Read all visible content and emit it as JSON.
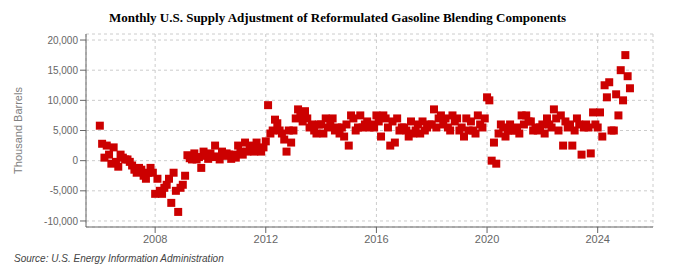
{
  "chart_data": {
    "type": "scatter",
    "title": "Monthly U.S. Supply Adjustment of Reformulated Gasoline Blending Components",
    "ylabel": "Thousand Barrels",
    "source": "Source: U.S. Energy Information Administration",
    "color": "#cc0000",
    "marker": "square",
    "grid": true,
    "xlim": [
      2005.5,
      2026.0
    ],
    "xticks": [
      2008,
      2012,
      2016,
      2020,
      2024
    ],
    "ylim": [
      -11000,
      21000
    ],
    "yticks": [
      {
        "value": -10000,
        "label": "-10,000"
      },
      {
        "value": -5000,
        "label": "-5,000"
      },
      0,
      {
        "value": 5000,
        "label": "5,000"
      },
      {
        "value": 10000,
        "label": "10,000"
      },
      {
        "value": 15000,
        "label": "15,000"
      },
      {
        "value": 20000,
        "label": "20,000"
      }
    ],
    "x": [
      2006.0,
      2006.083,
      2006.167,
      2006.25,
      2006.333,
      2006.417,
      2006.5,
      2006.583,
      2006.667,
      2006.75,
      2006.833,
      2006.917,
      2007.0,
      2007.083,
      2007.167,
      2007.25,
      2007.333,
      2007.417,
      2007.5,
      2007.583,
      2007.667,
      2007.75,
      2007.833,
      2007.917,
      2008.0,
      2008.083,
      2008.167,
      2008.25,
      2008.333,
      2008.417,
      2008.5,
      2008.583,
      2008.667,
      2008.75,
      2008.833,
      2008.917,
      2009.0,
      2009.083,
      2009.167,
      2009.25,
      2009.333,
      2009.417,
      2009.5,
      2009.583,
      2009.667,
      2009.75,
      2009.833,
      2009.917,
      2010.0,
      2010.083,
      2010.167,
      2010.25,
      2010.333,
      2010.417,
      2010.5,
      2010.583,
      2010.667,
      2010.75,
      2010.833,
      2010.917,
      2011.0,
      2011.083,
      2011.167,
      2011.25,
      2011.333,
      2011.417,
      2011.5,
      2011.583,
      2011.667,
      2011.75,
      2011.833,
      2011.917,
      2012.0,
      2012.083,
      2012.167,
      2012.25,
      2012.333,
      2012.417,
      2012.5,
      2012.583,
      2012.667,
      2012.75,
      2012.833,
      2012.917,
      2013.0,
      2013.083,
      2013.167,
      2013.25,
      2013.333,
      2013.417,
      2013.5,
      2013.583,
      2013.667,
      2013.75,
      2013.833,
      2013.917,
      2014.0,
      2014.083,
      2014.167,
      2014.25,
      2014.333,
      2014.417,
      2014.5,
      2014.583,
      2014.667,
      2014.75,
      2014.833,
      2014.917,
      2015.0,
      2015.083,
      2015.167,
      2015.25,
      2015.333,
      2015.417,
      2015.5,
      2015.583,
      2015.667,
      2015.75,
      2015.833,
      2015.917,
      2016.0,
      2016.083,
      2016.167,
      2016.25,
      2016.333,
      2016.417,
      2016.5,
      2016.583,
      2016.667,
      2016.75,
      2016.833,
      2016.917,
      2017.0,
      2017.083,
      2017.167,
      2017.25,
      2017.333,
      2017.417,
      2017.5,
      2017.583,
      2017.667,
      2017.75,
      2017.833,
      2017.917,
      2018.0,
      2018.083,
      2018.167,
      2018.25,
      2018.333,
      2018.417,
      2018.5,
      2018.583,
      2018.667,
      2018.75,
      2018.833,
      2018.917,
      2019.0,
      2019.083,
      2019.167,
      2019.25,
      2019.333,
      2019.417,
      2019.5,
      2019.583,
      2019.667,
      2019.75,
      2019.833,
      2019.917,
      2020.0,
      2020.083,
      2020.167,
      2020.25,
      2020.333,
      2020.417,
      2020.5,
      2020.583,
      2020.667,
      2020.75,
      2020.833,
      2020.917,
      2021.0,
      2021.083,
      2021.167,
      2021.25,
      2021.333,
      2021.417,
      2021.5,
      2021.583,
      2021.667,
      2021.75,
      2021.833,
      2021.917,
      2022.0,
      2022.083,
      2022.167,
      2022.25,
      2022.333,
      2022.417,
      2022.5,
      2022.583,
      2022.667,
      2022.75,
      2022.833,
      2022.917,
      2023.0,
      2023.083,
      2023.167,
      2023.25,
      2023.333,
      2023.417,
      2023.5,
      2023.583,
      2023.667,
      2023.75,
      2023.833,
      2023.917,
      2024.0,
      2024.083,
      2024.167,
      2024.25,
      2024.333,
      2024.417,
      2024.5,
      2024.583,
      2024.667,
      2024.75,
      2024.833,
      2024.917,
      2025.0,
      2025.083,
      2025.167
    ],
    "values": [
      5800,
      2800,
      500,
      2500,
      1000,
      -500,
      2200,
      -200,
      -1000,
      1000,
      500,
      200,
      200,
      -200,
      -800,
      -1500,
      -2000,
      -1200,
      -1500,
      -2500,
      -3000,
      -2000,
      -1200,
      -2000,
      -5500,
      -3000,
      -5000,
      -5500,
      -4500,
      -4000,
      -3000,
      -7000,
      -2000,
      -5000,
      -8500,
      -4500,
      -4000,
      -2500,
      900,
      400,
      200,
      1200,
      200,
      600,
      -1200,
      1500,
      800,
      300,
      1200,
      600,
      2500,
      700,
      200,
      1500,
      800,
      1200,
      1000,
      300,
      1000,
      500,
      2500,
      1500,
      1000,
      3000,
      1500,
      2500,
      2000,
      1500,
      3000,
      2000,
      1500,
      2200,
      3200,
      9200,
      4500,
      5000,
      6800,
      6200,
      5000,
      4500,
      3500,
      1500,
      5000,
      3000,
      5000,
      7000,
      8500,
      7500,
      6500,
      8200,
      7000,
      5500,
      6000,
      5000,
      4500,
      6000,
      6000,
      4500,
      7000,
      5500,
      6000,
      7000,
      5000,
      5500,
      4500,
      5500,
      4000,
      6000,
      2500,
      7500,
      7000,
      5000,
      5500,
      7500,
      5500,
      6000,
      6500,
      5500,
      6000,
      5500,
      7500,
      6500,
      4000,
      7500,
      7000,
      5500,
      2500,
      6500,
      3000,
      7000,
      5000,
      5500,
      5500,
      5000,
      4000,
      6500,
      4500,
      5000,
      6000,
      4500,
      6500,
      5000,
      5500,
      6000,
      6000,
      8500,
      5500,
      7000,
      7500,
      6000,
      7000,
      5500,
      5000,
      7500,
      6500,
      7000,
      5000,
      5500,
      4000,
      7000,
      5000,
      6500,
      5000,
      4500,
      7500,
      6000,
      5500,
      7000,
      10500,
      10000,
      0,
      3000,
      -500,
      4500,
      6000,
      5500,
      4000,
      5000,
      6000,
      5000,
      5000,
      5500,
      4500,
      7500,
      6000,
      7500,
      6500,
      6500,
      5000,
      5500,
      5000,
      5500,
      6000,
      4500,
      7000,
      6000,
      5500,
      8500,
      7000,
      5000,
      7500,
      2500,
      6500,
      5500,
      6000,
      2500,
      5000,
      7000,
      6000,
      1000,
      5500,
      6000,
      5500,
      1200,
      8000,
      6000,
      5500,
      8000,
      4000,
      12500,
      10500,
      13000,
      5000,
      5000,
      11000,
      7500,
      15000,
      10000,
      17500,
      14000,
      12000
    ]
  }
}
